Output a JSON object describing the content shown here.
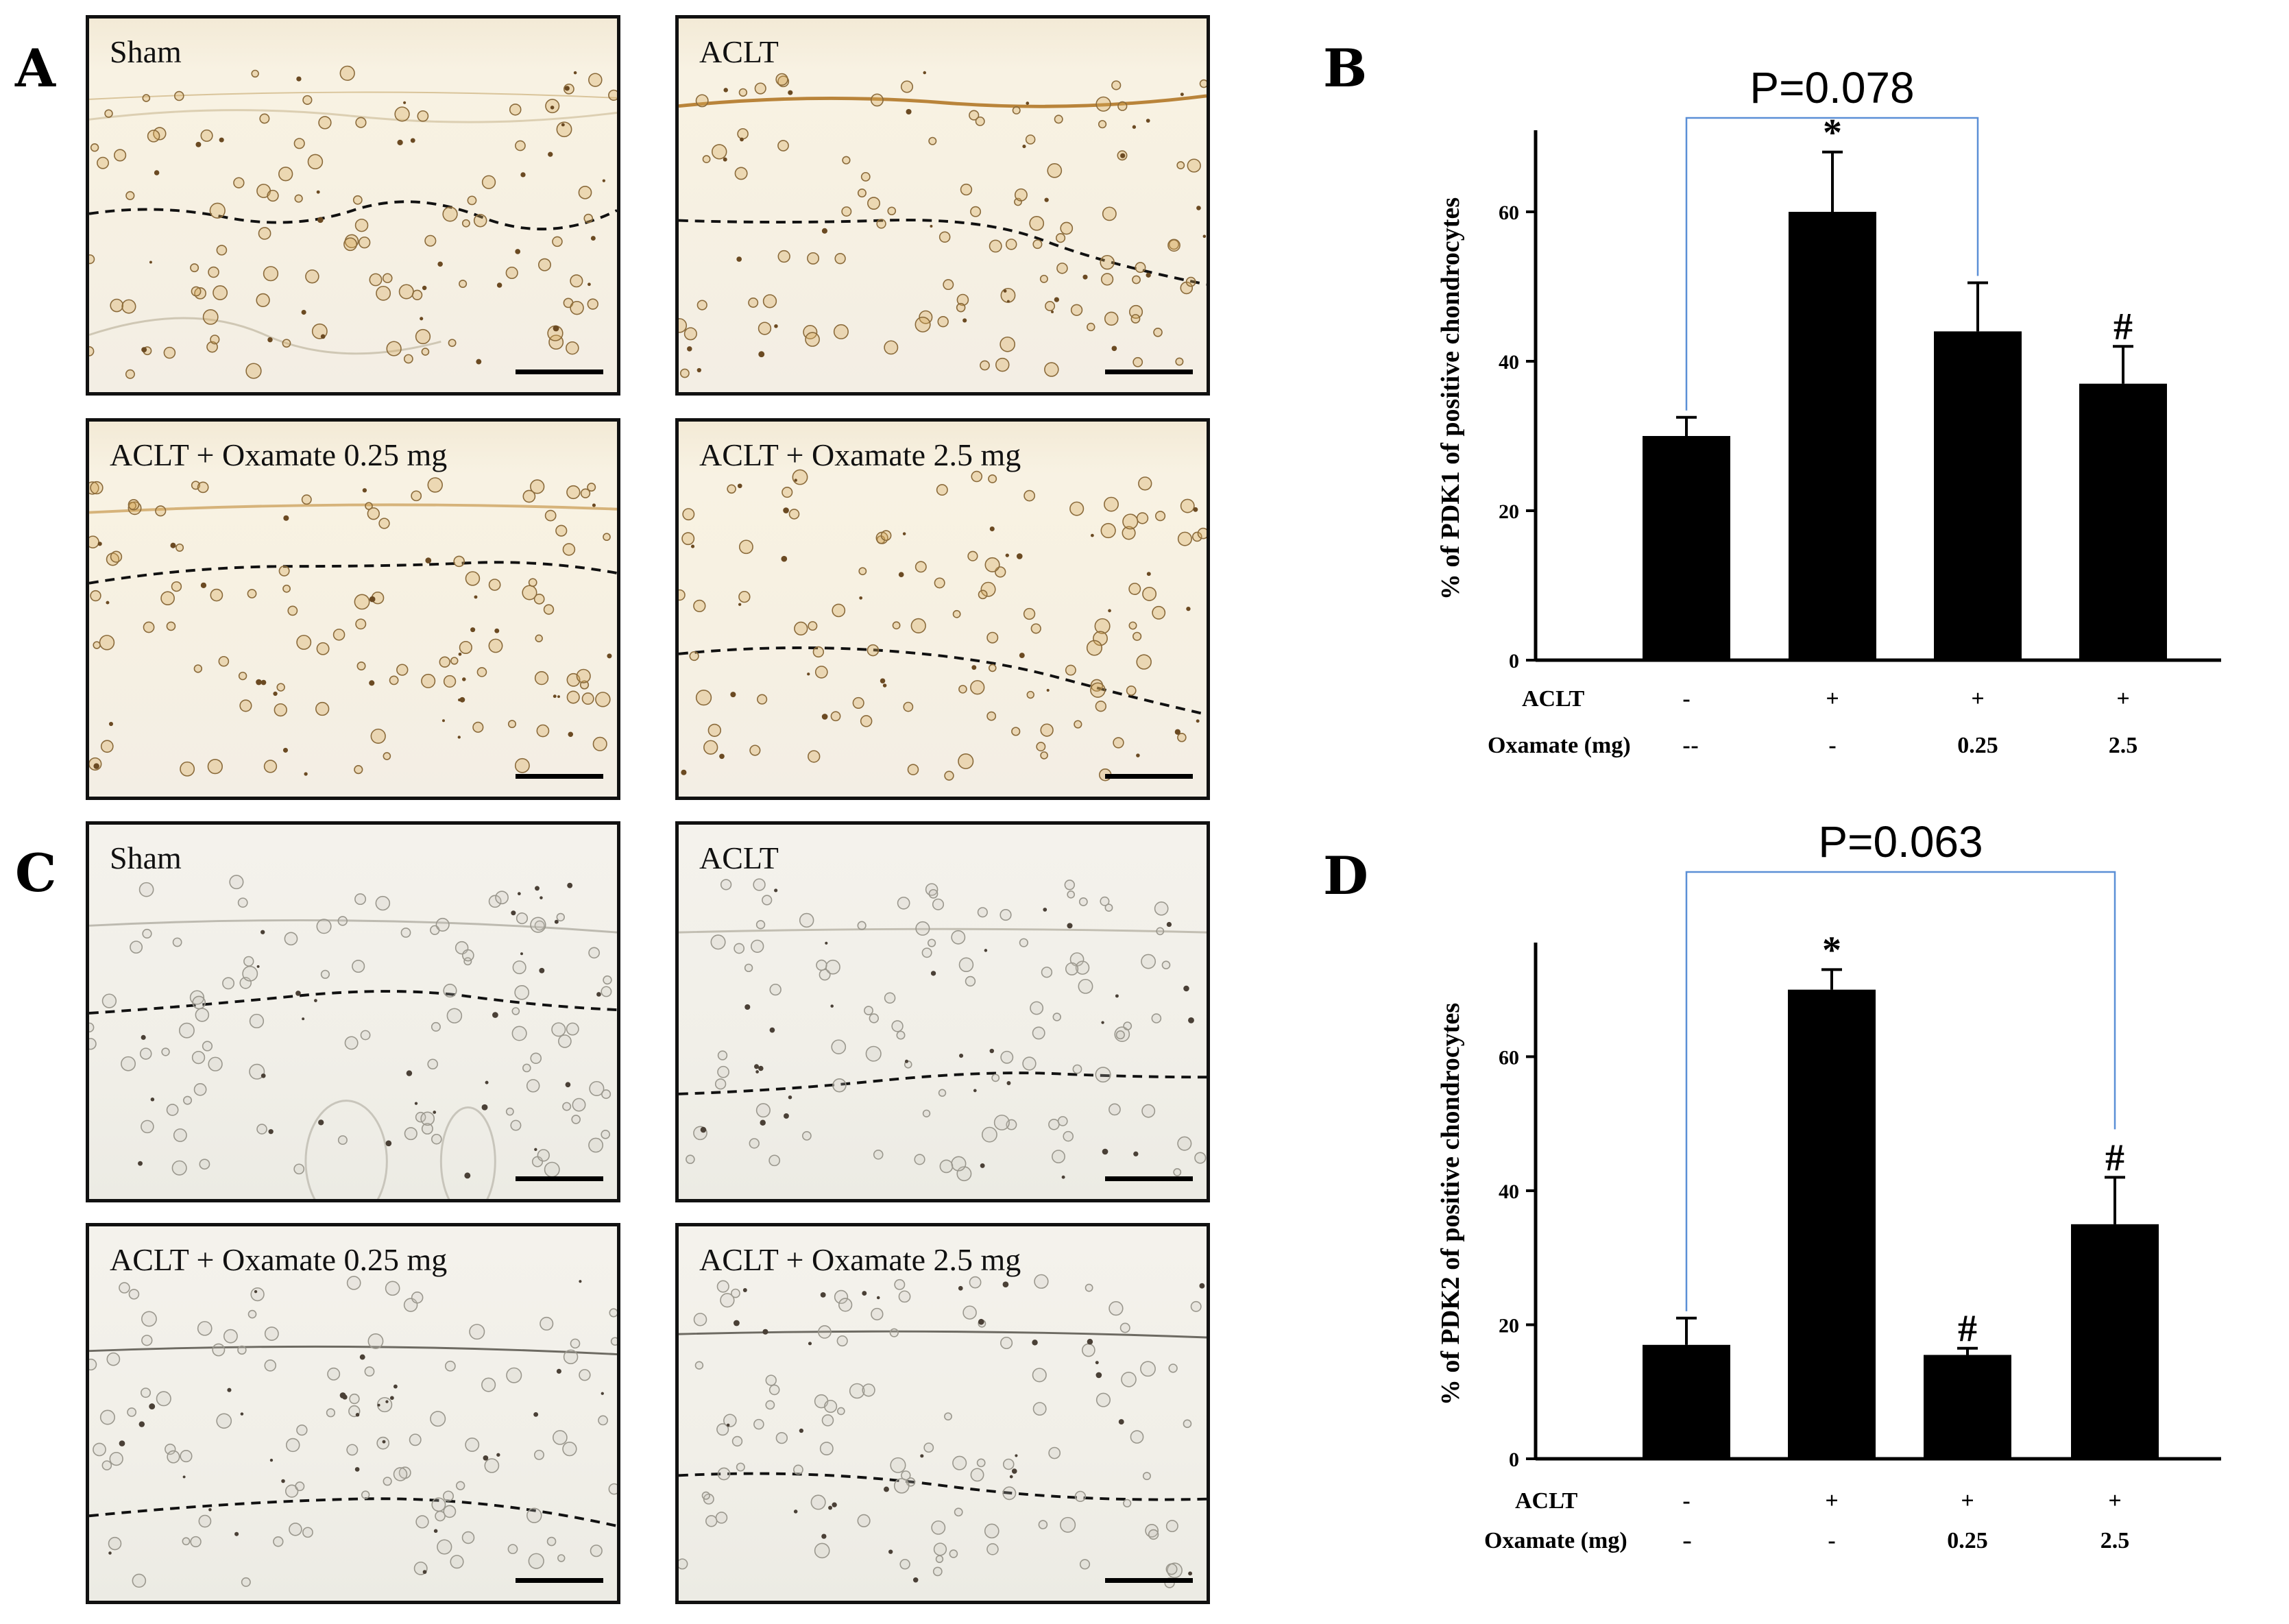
{
  "panels": {
    "A": "A",
    "B": "B",
    "C": "C",
    "D": "D"
  },
  "images_A": [
    {
      "label": "Sham"
    },
    {
      "label": "ACLT"
    },
    {
      "label": "ACLT + Oxamate 0.25 mg"
    },
    {
      "label": "ACLT + Oxamate 2.5 mg"
    }
  ],
  "images_C": [
    {
      "label": "Sham"
    },
    {
      "label": "ACLT"
    },
    {
      "label": "ACLT + Oxamate 0.25 mg"
    },
    {
      "label": "ACLT + Oxamate 2.5 mg"
    }
  ],
  "condition_labels": {
    "aclt": "ACLT",
    "oxamate": "Oxamate (mg)"
  },
  "chart_data": [
    {
      "type": "bar",
      "panel": "B",
      "ylabel": "% of PDK1 of positive chondrocytes",
      "ylim": [
        0,
        70
      ],
      "yticks": [
        0,
        20,
        40,
        60
      ],
      "values": [
        30,
        60,
        44,
        37
      ],
      "errors": [
        2.5,
        8,
        6.5,
        5
      ],
      "aclt_row": [
        "-",
        "+",
        "+",
        "+"
      ],
      "oxamate_row": [
        "-",
        "-",
        "0.25",
        "2.5"
      ],
      "oxamate_leading": "-",
      "markers": [
        "",
        "*",
        "",
        "#"
      ],
      "comparison": {
        "from": 0,
        "to": 2,
        "label": "P=0.078"
      }
    },
    {
      "type": "bar",
      "panel": "D",
      "ylabel": "% of PDK2 of positive chondrocytes",
      "ylim": [
        0,
        76
      ],
      "yticks": [
        0,
        20,
        40,
        60
      ],
      "values": [
        17,
        70,
        15.5,
        35
      ],
      "errors": [
        4,
        3,
        1,
        7
      ],
      "aclt_row": [
        "-",
        "+",
        "+",
        "+"
      ],
      "oxamate_row": [
        "-",
        "-",
        "0.25",
        "2.5"
      ],
      "oxamate_leading": "-",
      "markers": [
        "",
        "*",
        "#",
        "#"
      ],
      "comparison": {
        "from": 0,
        "to": 3,
        "label": "P=0.063"
      }
    }
  ]
}
